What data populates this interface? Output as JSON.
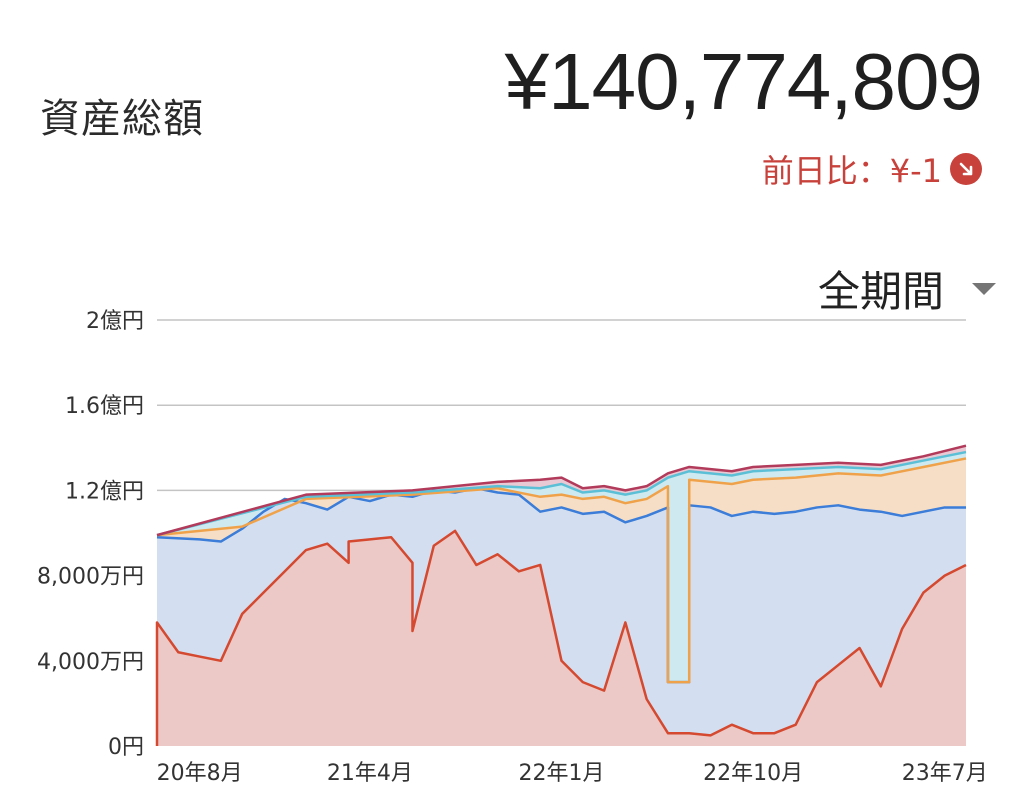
{
  "header": {
    "label": "資産総額",
    "total": "¥140,774,809",
    "day_change": "前日比：¥-1",
    "day_change_icon": "arrow-down-right-icon",
    "negative_color": "#c8413b"
  },
  "period": {
    "selected": "全期間",
    "dropdown_icon": "caret-down-icon"
  },
  "chart_data": {
    "type": "area",
    "stacked": true,
    "x_tick_labels": [
      "20年8月",
      "21年4月",
      "22年1月",
      "22年10月",
      "23年7月"
    ],
    "y_tick_labels": [
      "0円",
      "4,000万円",
      "8,000万円",
      "1.2億円",
      "1.6億円",
      "2億円"
    ],
    "y_ticks": [
      0,
      40000000,
      80000000,
      120000000,
      160000000,
      200000000
    ],
    "ylim": [
      0,
      200000000
    ],
    "x_range": [
      "2020-06",
      "2023-08"
    ],
    "grid": true,
    "series": [
      {
        "color": "#d4492f",
        "fill": "#ecc9c6",
        "points": [
          [
            "2020-06",
            0
          ],
          [
            "2020-06",
            58000000
          ],
          [
            "2020-07",
            44000000
          ],
          [
            "2020-08",
            42000000
          ],
          [
            "2020-09",
            40000000
          ],
          [
            "2020-10",
            62000000
          ],
          [
            "2020-11",
            72000000
          ],
          [
            "2020-12",
            82000000
          ],
          [
            "2021-01",
            92000000
          ],
          [
            "2021-02",
            95000000
          ],
          [
            "2021-03",
            86000000
          ],
          [
            "2021-03",
            96000000
          ],
          [
            "2021-04",
            97000000
          ],
          [
            "2021-05",
            98000000
          ],
          [
            "2021-06",
            86000000
          ],
          [
            "2021-06",
            54000000
          ],
          [
            "2021-07",
            94000000
          ],
          [
            "2021-08",
            101000000
          ],
          [
            "2021-09",
            85000000
          ],
          [
            "2021-10",
            90000000
          ],
          [
            "2021-11",
            82000000
          ],
          [
            "2021-12",
            85000000
          ],
          [
            "2022-01",
            40000000
          ],
          [
            "2022-02",
            30000000
          ],
          [
            "2022-03",
            26000000
          ],
          [
            "2022-04",
            58000000
          ],
          [
            "2022-05",
            22000000
          ],
          [
            "2022-06",
            6000000
          ],
          [
            "2022-07",
            6000000
          ],
          [
            "2022-08",
            5000000
          ],
          [
            "2022-09",
            10000000
          ],
          [
            "2022-10",
            6000000
          ],
          [
            "2022-11",
            6000000
          ],
          [
            "2022-12",
            10000000
          ],
          [
            "2023-01",
            30000000
          ],
          [
            "2023-02",
            38000000
          ],
          [
            "2023-03",
            46000000
          ],
          [
            "2023-04",
            28000000
          ],
          [
            "2023-05",
            55000000
          ],
          [
            "2023-06",
            72000000
          ],
          [
            "2023-07",
            80000000
          ],
          [
            "2023-08",
            85000000
          ]
        ]
      },
      {
        "color": "#3b7dd8",
        "fill": "#d3dff0",
        "points": [
          [
            "2020-06",
            98000000
          ],
          [
            "2020-08",
            97000000
          ],
          [
            "2020-09",
            96000000
          ],
          [
            "2020-10",
            102000000
          ],
          [
            "2020-11",
            110000000
          ],
          [
            "2020-12",
            116000000
          ],
          [
            "2021-01",
            114000000
          ],
          [
            "2021-02",
            111000000
          ],
          [
            "2021-03",
            117000000
          ],
          [
            "2021-04",
            115000000
          ],
          [
            "2021-05",
            118000000
          ],
          [
            "2021-06",
            117000000
          ],
          [
            "2021-07",
            120000000
          ],
          [
            "2021-08",
            119000000
          ],
          [
            "2021-09",
            121000000
          ],
          [
            "2021-10",
            119000000
          ],
          [
            "2021-11",
            118000000
          ],
          [
            "2021-12",
            110000000
          ],
          [
            "2022-01",
            112000000
          ],
          [
            "2022-02",
            109000000
          ],
          [
            "2022-03",
            110000000
          ],
          [
            "2022-04",
            105000000
          ],
          [
            "2022-05",
            108000000
          ],
          [
            "2022-06",
            112000000
          ],
          [
            "2022-06",
            30000000
          ],
          [
            "2022-07",
            30000000
          ],
          [
            "2022-07",
            113000000
          ],
          [
            "2022-08",
            112000000
          ],
          [
            "2022-09",
            108000000
          ],
          [
            "2022-10",
            110000000
          ],
          [
            "2022-11",
            109000000
          ],
          [
            "2022-12",
            110000000
          ],
          [
            "2023-01",
            112000000
          ],
          [
            "2023-02",
            113000000
          ],
          [
            "2023-03",
            111000000
          ],
          [
            "2023-04",
            110000000
          ],
          [
            "2023-05",
            108000000
          ],
          [
            "2023-06",
            110000000
          ],
          [
            "2023-07",
            112000000
          ],
          [
            "2023-08",
            112000000
          ]
        ]
      },
      {
        "color": "#f0a24a",
        "fill": "#f6dec6",
        "points": [
          [
            "2020-06",
            99000000
          ],
          [
            "2020-10",
            103000000
          ],
          [
            "2021-01",
            116000000
          ],
          [
            "2021-06",
            118000000
          ],
          [
            "2021-10",
            121000000
          ],
          [
            "2021-12",
            117000000
          ],
          [
            "2022-01",
            118000000
          ],
          [
            "2022-02",
            116000000
          ],
          [
            "2022-03",
            117000000
          ],
          [
            "2022-04",
            114000000
          ],
          [
            "2022-05",
            116000000
          ],
          [
            "2022-06",
            122000000
          ],
          [
            "2022-06",
            30000000
          ],
          [
            "2022-07",
            30000000
          ],
          [
            "2022-07",
            125000000
          ],
          [
            "2022-09",
            123000000
          ],
          [
            "2022-10",
            125000000
          ],
          [
            "2022-12",
            126000000
          ],
          [
            "2023-02",
            128000000
          ],
          [
            "2023-04",
            127000000
          ],
          [
            "2023-06",
            131000000
          ],
          [
            "2023-08",
            135000000
          ]
        ]
      },
      {
        "color": "#5bc0d6",
        "fill": "#cfe9f0",
        "points": [
          [
            "2020-06",
            99000000
          ],
          [
            "2021-01",
            117000000
          ],
          [
            "2021-06",
            119000000
          ],
          [
            "2021-10",
            122000000
          ],
          [
            "2021-12",
            121000000
          ],
          [
            "2022-01",
            123000000
          ],
          [
            "2022-02",
            119000000
          ],
          [
            "2022-03",
            120000000
          ],
          [
            "2022-04",
            118000000
          ],
          [
            "2022-05",
            120000000
          ],
          [
            "2022-06",
            126000000
          ],
          [
            "2022-07",
            129000000
          ],
          [
            "2022-09",
            127000000
          ],
          [
            "2022-10",
            129000000
          ],
          [
            "2022-12",
            130000000
          ],
          [
            "2023-02",
            131000000
          ],
          [
            "2023-04",
            130000000
          ],
          [
            "2023-06",
            134000000
          ],
          [
            "2023-08",
            138000000
          ]
        ]
      },
      {
        "color": "#b23a5a",
        "fill": "#e9c9d3",
        "points": [
          [
            "2020-06",
            99000000
          ],
          [
            "2021-01",
            118000000
          ],
          [
            "2021-06",
            120000000
          ],
          [
            "2021-10",
            124000000
          ],
          [
            "2021-12",
            125000000
          ],
          [
            "2022-01",
            126000000
          ],
          [
            "2022-02",
            121000000
          ],
          [
            "2022-03",
            122000000
          ],
          [
            "2022-04",
            120000000
          ],
          [
            "2022-05",
            122000000
          ],
          [
            "2022-06",
            128000000
          ],
          [
            "2022-07",
            131000000
          ],
          [
            "2022-09",
            129000000
          ],
          [
            "2022-10",
            131000000
          ],
          [
            "2022-12",
            132000000
          ],
          [
            "2023-02",
            133000000
          ],
          [
            "2023-04",
            132000000
          ],
          [
            "2023-06",
            136000000
          ],
          [
            "2023-08",
            141000000
          ]
        ]
      }
    ]
  }
}
